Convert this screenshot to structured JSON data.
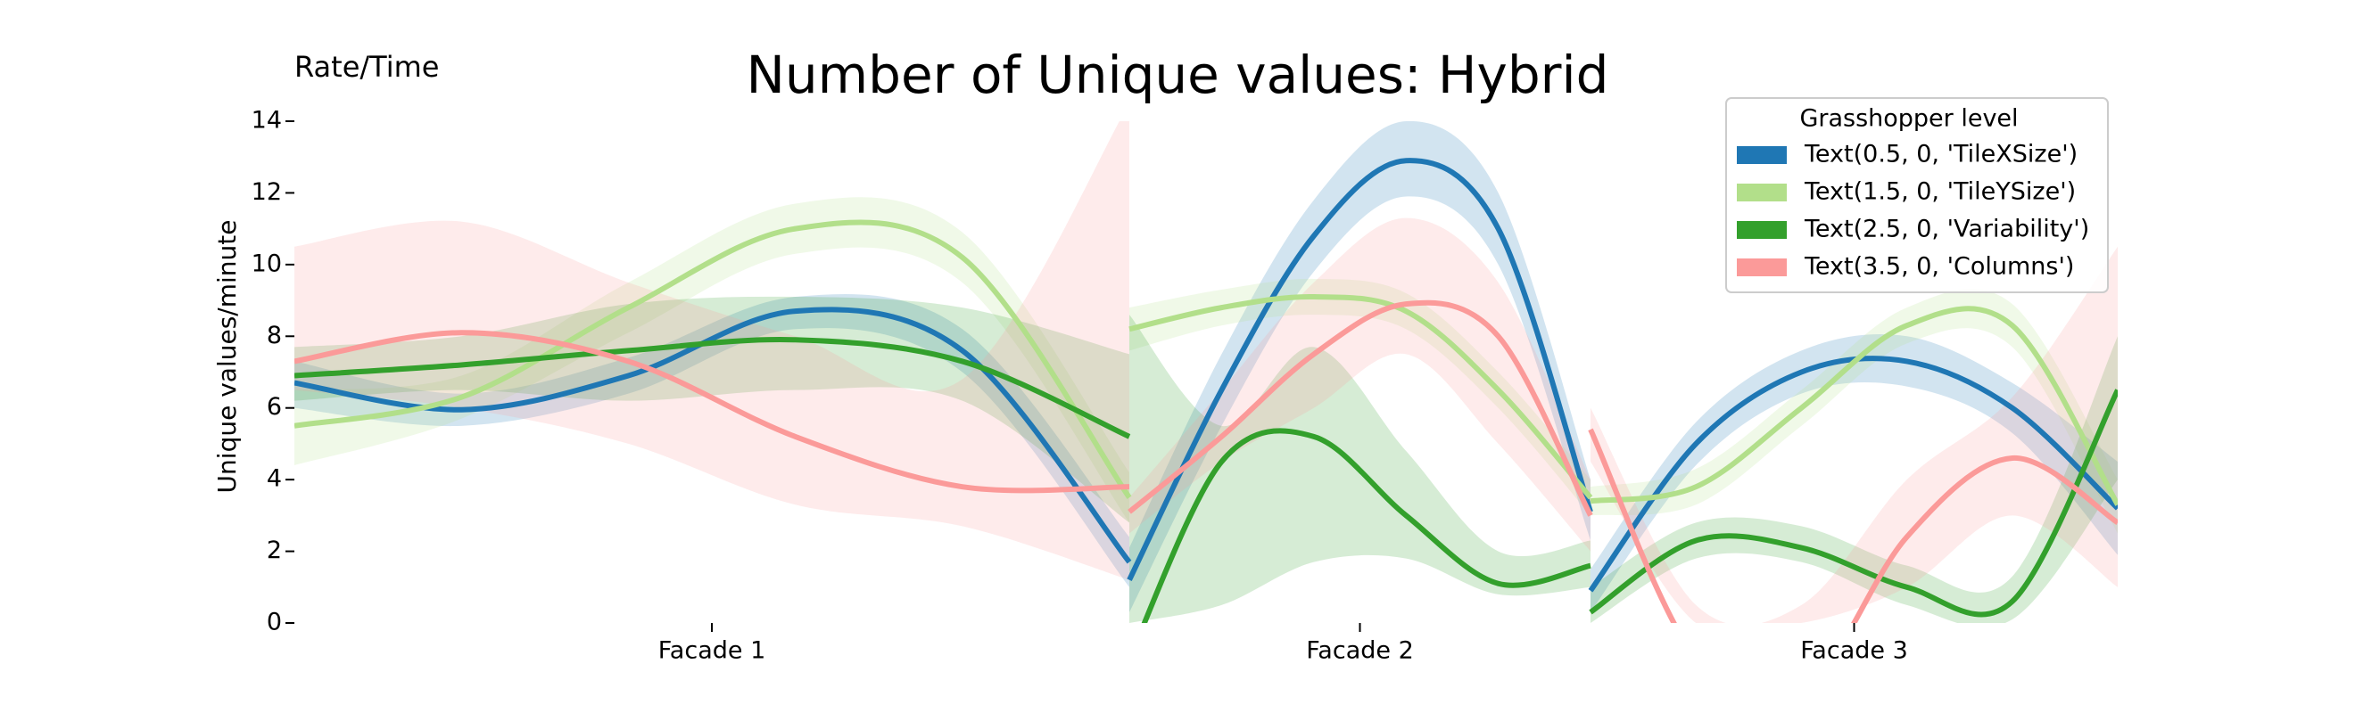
{
  "chart_data": {
    "type": "line",
    "title": "Number of Unique values: Hybrid",
    "annotation": "Rate/Time",
    "y_label": "Unique values/minute",
    "legend_title": "Grasshopper level",
    "legend": "upper right",
    "categories": [
      "Facade 1",
      "Facade 2",
      "Facade 3"
    ],
    "ylim": [
      0,
      14
    ],
    "yticks": [
      0,
      2,
      4,
      6,
      8,
      10,
      12,
      14
    ],
    "series": [
      {
        "name": "Text(0.5, 0, 'TileXSize')",
        "color": "#1f77b4",
        "values": [
          [
            6.7,
            5.95,
            6.9,
            8.7,
            7.6,
            1.7
          ],
          [
            1.2,
            6.5,
            10.8,
            12.9,
            11,
            3.1
          ],
          [
            0.9,
            5,
            7,
            7.3,
            6,
            3.2
          ]
        ],
        "lower": [
          [
            6.0,
            5.5,
            6.4,
            8.2,
            7.0,
            1.0
          ],
          [
            0.3,
            5.5,
            9.8,
            11.9,
            10,
            2.3
          ],
          [
            0.3,
            4.4,
            6.4,
            6.6,
            5.3,
            1.9
          ]
        ],
        "upper": [
          [
            7.3,
            6.4,
            7.4,
            9.1,
            8.2,
            2.4
          ],
          [
            2.1,
            7.5,
            11.8,
            14,
            12,
            4
          ],
          [
            1.5,
            5.6,
            7.6,
            8,
            6.7,
            4.5
          ]
        ]
      },
      {
        "name": "Text(1.5, 0, 'TileYSize')",
        "color": "#b2df8a",
        "values": [
          [
            5.5,
            6.3,
            8.8,
            11.0,
            10.2,
            3.5
          ],
          [
            8.2,
            8.8,
            9.1,
            8.7,
            6.5,
            3.5
          ],
          [
            3.4,
            3.8,
            6,
            8.3,
            8.3,
            3.3
          ]
        ],
        "lower": [
          [
            4.4,
            5.7,
            8.1,
            10.3,
            9.5,
            2.8
          ],
          [
            7.6,
            8.3,
            8.6,
            8.2,
            6,
            3
          ],
          [
            3,
            3.3,
            5.5,
            7.8,
            7.7,
            2.5
          ]
        ],
        "upper": [
          [
            6.5,
            6.9,
            9.5,
            11.7,
            10.9,
            4.2
          ],
          [
            8.8,
            9.3,
            9.6,
            9.2,
            7,
            4
          ],
          [
            3.8,
            4.3,
            6.5,
            8.8,
            8.9,
            4
          ]
        ]
      },
      {
        "name": "Text(2.5, 0, 'Variability')",
        "color": "#33a02c",
        "values": [
          [
            6.9,
            7.2,
            7.6,
            7.9,
            7.3,
            5.2
          ],
          [
            -1,
            4.5,
            5.2,
            3,
            1.1,
            1.6
          ],
          [
            0.3,
            2.3,
            2.1,
            1,
            0.6,
            6.5
          ]
        ],
        "lower": [
          [
            6.2,
            6.5,
            6.2,
            6.5,
            6.2,
            2.8
          ],
          [
            0,
            0.5,
            1.7,
            1.8,
            0.8,
            1.0
          ],
          [
            0,
            1.8,
            1.7,
            0.5,
            0.1,
            4
          ]
        ],
        "upper": [
          [
            7.7,
            8.0,
            8.9,
            9.1,
            8.8,
            7.5
          ],
          [
            8.6,
            5.5,
            7.7,
            4.8,
            2.0,
            2.3
          ],
          [
            1,
            2.8,
            2.7,
            1.6,
            1.3,
            8
          ]
        ]
      },
      {
        "name": "Text(3.5, 0, 'Columns')",
        "color": "#fb9a99",
        "values": [
          [
            7.3,
            8.1,
            7.3,
            5.2,
            3.8,
            3.8
          ],
          [
            3.1,
            5.2,
            7.5,
            8.9,
            8.0,
            3.0
          ],
          [
            5.4,
            -1,
            -2,
            2.4,
            4.6,
            2.8
          ]
        ],
        "lower": [
          [
            6.5,
            6,
            5,
            3.3,
            2.7,
            1.2
          ],
          [
            2.5,
            4.5,
            6,
            7.5,
            5,
            2
          ],
          [
            4.5,
            0,
            0,
            1,
            3,
            1
          ]
        ],
        "upper": [
          [
            10.5,
            11.2,
            9.5,
            8,
            6.8,
            14.5
          ],
          [
            3.5,
            6.5,
            9.5,
            11.3,
            9.5,
            4
          ],
          [
            6,
            0.5,
            0.5,
            4,
            6.3,
            10.5
          ]
        ]
      }
    ]
  }
}
